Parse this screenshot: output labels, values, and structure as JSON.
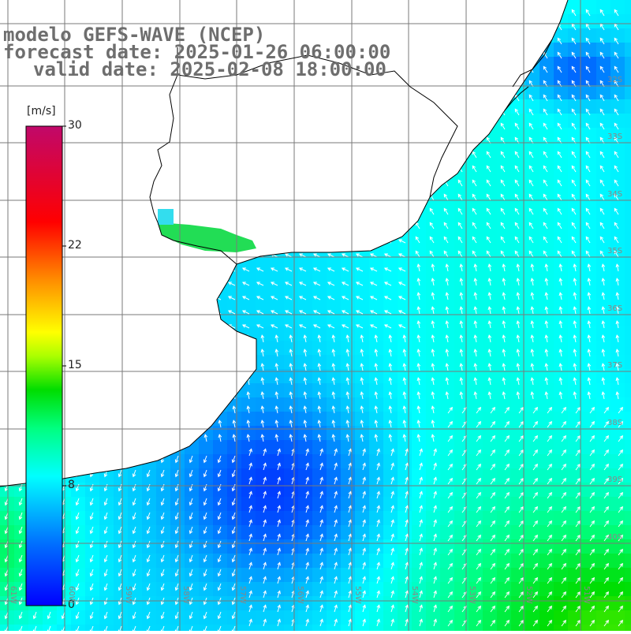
{
  "title": {
    "line1": "modelo GEFS-WAVE (NCEP)",
    "line2": "forecast date: 2025-01-26 06:00:00",
    "line3": "valid date: 2025-02-08 18:00:00"
  },
  "colorbar": {
    "unit": "[m/s]",
    "ticks": [
      "30",
      "22",
      "15",
      "8",
      "0"
    ],
    "tick_values": [
      30,
      22,
      15,
      8,
      0
    ],
    "colors": [
      "#c0086a",
      "#ff0000",
      "#ff8c00",
      "#ffff00",
      "#00dd00",
      "#00ffee",
      "#00a0ff",
      "#0000ff"
    ]
  },
  "map": {
    "lat_labels": [
      "32S",
      "33S",
      "34S",
      "35S",
      "36S",
      "37S",
      "38S",
      "39S",
      "40S"
    ],
    "lon_labels": [
      "61W",
      "60W",
      "59W",
      "58W",
      "57W",
      "56W",
      "55W",
      "54W",
      "53W",
      "52W",
      "51W"
    ],
    "land_color": "#ffffff",
    "grid_color": "#7a7a7a",
    "coast_color": "#000000",
    "arrow_color": "#ffffff"
  }
}
